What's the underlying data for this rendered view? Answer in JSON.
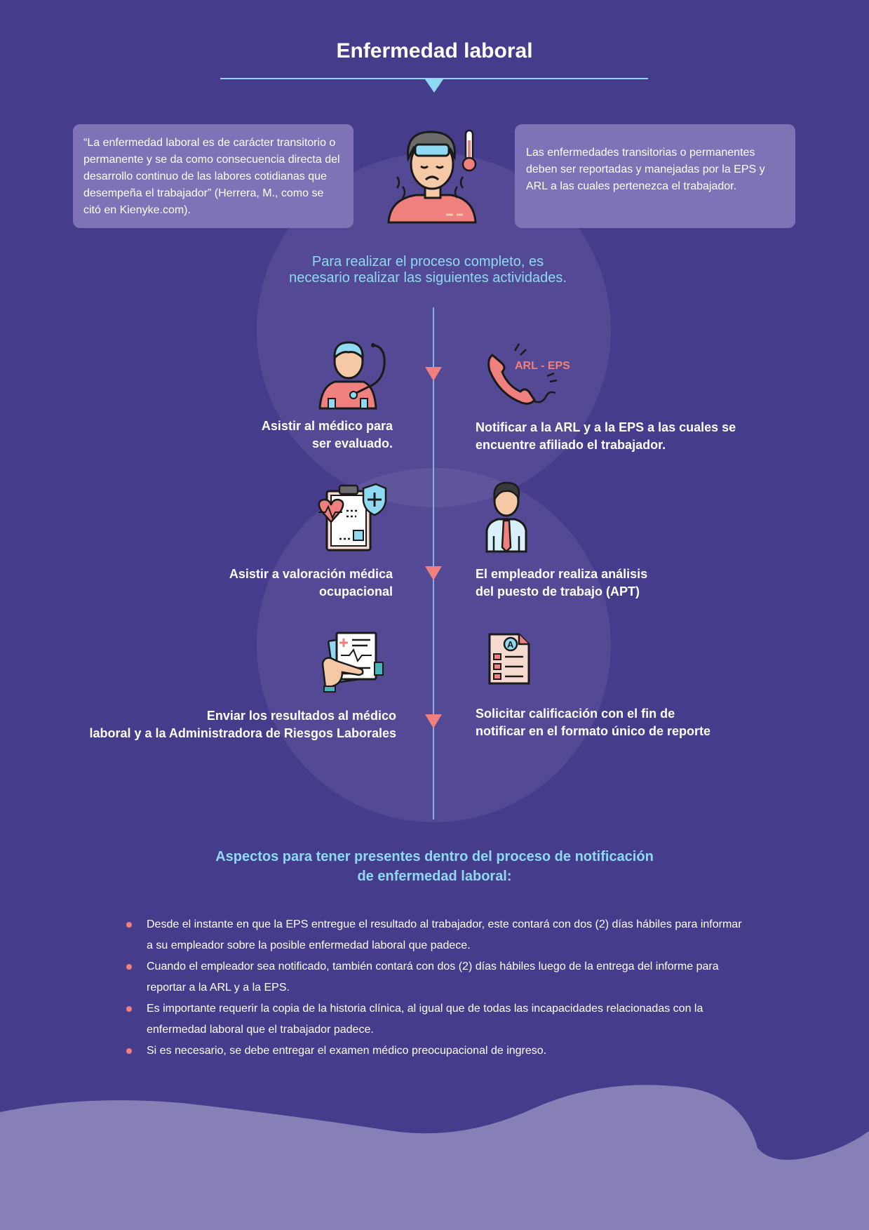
{
  "title": "Enfermedad laboral",
  "info": {
    "left": "“La enfermedad laboral es de carácter transitorio o permanente y se da como consecuencia directa del desarrollo continuo de las labores cotidianas que desempeña el trabajador” (Herrera, M., como se citó en Kienyke.com).",
    "right": "Las enfermedades transitorias o permanentes deben ser reportadas y manejadas por la EPS y ARL a las cuales pertenezca el trabajador."
  },
  "intro": {
    "line1": "Para realizar el proceso completo, es",
    "line2": "necesario realizar las siguientes actividades."
  },
  "steps": [
    {
      "line1": "Asistir al médico para",
      "line2": "ser evaluado.",
      "icon": "doctor-icon"
    },
    {
      "line1": "Notificar a la ARL y a la EPS a las cuales se",
      "line2": "encuentre afiliado el trabajador.",
      "icon": "phone-icon",
      "icon_text": "ARL - EPS"
    },
    {
      "line1": "Asistir a valoración médica",
      "line2": "ocupacional",
      "icon": "medical-report-icon"
    },
    {
      "line1": "El empleador realiza análisis",
      "line2": "del puesto de trabajo (APT)",
      "icon": "employer-icon"
    },
    {
      "line1": "Enviar los resultados al médico",
      "line2": "laboral y a la Administradora de Riesgos Laborales",
      "icon": "results-document-icon"
    },
    {
      "line1": "Solicitar calificación con el fin de",
      "line2": "notificar en el formato único de reporte",
      "icon": "grade-document-icon"
    }
  ],
  "aspects": {
    "title_line1": "Aspectos para tener presentes dentro del proceso de notificación",
    "title_line2": "de enfermedad laboral:",
    "items": [
      "Desde el instante en que la EPS entregue el resultado al trabajador, este contará con dos (2) días hábiles para informar a su empleador sobre la posible enfermedad laboral que padece.",
      "Cuando el empleador sea notificado, también contará con dos (2) días hábiles luego de la entrega del informe para reportar a la ARL y a la EPS.",
      "Es importante requerir la copia de la historia clínica, al igual que de todas las incapacidades relacionadas con la enfermedad laboral que el trabajador padece.",
      "Si es necesario, se debe entregar el examen médico preocupacional de ingreso."
    ]
  },
  "colors": {
    "background": "#463c8c",
    "box": "#7e73b6",
    "accent_blue": "#8fd9f2",
    "accent_coral": "#f0807e",
    "wave": "#8680b6"
  },
  "icons": {
    "hero": "sick-person-thermometer-icon"
  }
}
